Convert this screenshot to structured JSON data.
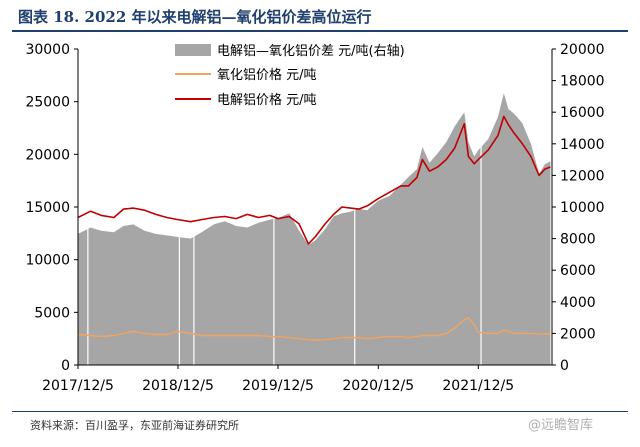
{
  "title": "图表 18. 2022 年以来电解铝—氧化铝价差高位运行",
  "source": "资料来源：百川盈孚，东亚前海证券研究所",
  "watermark": "@远瞻智库",
  "chart_data": {
    "type": "area",
    "x_dates": [
      "2017-12-05",
      "2018-01-20",
      "2018-02-28",
      "2018-04-15",
      "2018-05-20",
      "2018-06-25",
      "2018-08-05",
      "2018-09-15",
      "2018-10-25",
      "2018-12-05",
      "2019-01-20",
      "2019-03-01",
      "2019-04-15",
      "2019-05-25",
      "2019-07-05",
      "2019-08-15",
      "2019-09-25",
      "2019-11-05",
      "2019-12-05",
      "2020-01-15",
      "2020-02-20",
      "2020-03-25",
      "2020-04-20",
      "2020-05-25",
      "2020-06-25",
      "2020-07-25",
      "2020-08-25",
      "2020-09-25",
      "2020-10-25",
      "2020-12-05",
      "2021-01-15",
      "2021-02-25",
      "2021-03-25",
      "2021-04-25",
      "2021-05-15",
      "2021-06-10",
      "2021-07-10",
      "2021-08-10",
      "2021-09-10",
      "2021-10-15",
      "2021-10-30",
      "2021-11-20",
      "2021-12-05",
      "2022-01-10",
      "2022-02-15",
      "2022-03-08",
      "2022-03-25",
      "2022-04-15",
      "2022-05-15",
      "2022-06-15",
      "2022-07-15",
      "2022-08-05",
      "2022-08-25"
    ],
    "series": [
      {
        "name": "电解铝—氧化铝价差  元/吨(右轴)",
        "axis": "right",
        "color": "#a6a6a6",
        "values": [
          8300,
          8700,
          8500,
          8400,
          8800,
          8900,
          8500,
          8300,
          8200,
          8100,
          8000,
          8400,
          8900,
          9100,
          8800,
          8700,
          9000,
          9200,
          9300,
          9600,
          8500,
          7600,
          7900,
          8600,
          9400,
          9600,
          9700,
          9900,
          9800,
          10400,
          10700,
          11400,
          11900,
          12400,
          13800,
          12800,
          13400,
          14100,
          15100,
          16000,
          14100,
          13200,
          13600,
          14300,
          15700,
          17200,
          16200,
          15900,
          15300,
          14000,
          12100,
          12700,
          12900
        ]
      },
      {
        "name": "氧化铝价格  元/吨",
        "axis": "left",
        "color": "#f4a460",
        "values": [
          2900,
          2800,
          2700,
          2800,
          3000,
          3200,
          3000,
          2900,
          2900,
          3200,
          3000,
          2800,
          2800,
          2800,
          2800,
          2800,
          2800,
          2700,
          2700,
          2600,
          2500,
          2400,
          2350,
          2400,
          2500,
          2600,
          2600,
          2600,
          2500,
          2600,
          2700,
          2700,
          2600,
          2700,
          2800,
          2800,
          2800,
          3000,
          3500,
          4300,
          4500,
          3800,
          3100,
          3000,
          3000,
          3300,
          3200,
          3000,
          3000,
          3000,
          2950,
          2950,
          2950
        ]
      },
      {
        "name": "电解铝价格  元/吨",
        "axis": "left",
        "color": "#c00000",
        "values": [
          14000,
          14600,
          14200,
          14000,
          14800,
          14900,
          14700,
          14300,
          14000,
          13800,
          13600,
          13800,
          14000,
          14100,
          13900,
          14300,
          14000,
          14200,
          13900,
          14100,
          13400,
          11500,
          12200,
          13400,
          14300,
          15000,
          14900,
          14800,
          15100,
          15800,
          16400,
          17000,
          17000,
          17800,
          19500,
          18400,
          18800,
          19500,
          20600,
          22900,
          19800,
          19100,
          19500,
          20400,
          21800,
          23600,
          22800,
          22000,
          21000,
          19800,
          18000,
          18600,
          18800
        ]
      }
    ],
    "x_tick_labels": [
      "2017/12/5",
      "2018/12/5",
      "2019/12/5",
      "2020/12/5",
      "2021/12/5"
    ],
    "x_tick_dates": [
      "2017-12-05",
      "2018-12-05",
      "2019-12-05",
      "2020-12-05",
      "2021-12-05"
    ],
    "x_range": [
      "2017-12-05",
      "2022-08-31"
    ],
    "y_left": {
      "min": 0,
      "max": 30000,
      "ticks": [
        0,
        5000,
        10000,
        15000,
        20000,
        25000,
        30000
      ]
    },
    "y_right": {
      "min": 0,
      "max": 20000,
      "ticks": [
        0,
        2000,
        4000,
        6000,
        8000,
        10000,
        12000,
        14000,
        16000,
        18000,
        20000
      ]
    },
    "grid": false,
    "legend_position": "top-center"
  }
}
